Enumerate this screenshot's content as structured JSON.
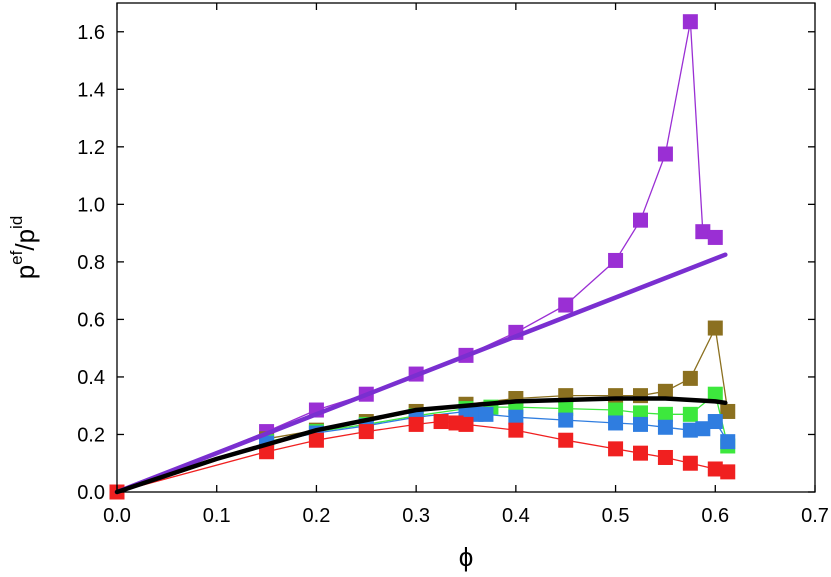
{
  "chart_data": {
    "type": "scatter",
    "xlabel": "ϕ",
    "ylabel": {
      "base": "p",
      "sup1": "ef",
      "slash": "/p",
      "sup2": "id"
    },
    "xlim": [
      0.0,
      0.7
    ],
    "ylim": [
      0.0,
      1.7
    ],
    "xticks": [
      0.0,
      0.1,
      0.2,
      0.3,
      0.4,
      0.5,
      0.6,
      0.7
    ],
    "xtick_labels": [
      "0.0",
      "0.1",
      "0.2",
      "0.3",
      "0.4",
      "0.5",
      "0.6",
      "0.7"
    ],
    "yticks": [
      0.0,
      0.2,
      0.4,
      0.6,
      0.8,
      1.0,
      1.2,
      1.4,
      1.6
    ],
    "ytick_labels": [
      "0.0",
      "0.2",
      "0.4",
      "0.6",
      "0.8",
      "1.0",
      "1.2",
      "1.4",
      "1.6"
    ],
    "grid": false,
    "legend": false,
    "series": [
      {
        "color": "#9a2fd4",
        "marker": "square",
        "x": [
          0.0,
          0.15,
          0.2,
          0.25,
          0.3,
          0.35,
          0.4,
          0.45,
          0.5,
          0.525,
          0.55,
          0.575,
          0.5875,
          0.6
        ],
        "y": [
          0.0,
          0.21,
          0.285,
          0.34,
          0.41,
          0.475,
          0.555,
          0.65,
          0.805,
          0.945,
          1.175,
          1.635,
          0.905,
          0.885
        ]
      },
      {
        "color": "#8b7020",
        "marker": "square",
        "x": [
          0.15,
          0.2,
          0.25,
          0.3,
          0.35,
          0.4,
          0.45,
          0.5,
          0.525,
          0.55,
          0.575,
          0.6,
          0.6125
        ],
        "y": [
          0.185,
          0.215,
          0.245,
          0.28,
          0.305,
          0.325,
          0.335,
          0.335,
          0.335,
          0.35,
          0.395,
          0.57,
          0.28
        ]
      },
      {
        "color": "#3de83d",
        "marker": "square",
        "x": [
          0.15,
          0.2,
          0.25,
          0.3,
          0.35,
          0.375,
          0.4,
          0.45,
          0.5,
          0.525,
          0.55,
          0.575,
          0.6,
          0.6125
        ],
        "y": [
          0.175,
          0.21,
          0.235,
          0.265,
          0.29,
          0.295,
          0.295,
          0.29,
          0.285,
          0.275,
          0.27,
          0.27,
          0.34,
          0.16
        ]
      },
      {
        "color": "#2f7de0",
        "marker": "square",
        "x": [
          0.15,
          0.2,
          0.25,
          0.3,
          0.35,
          0.36,
          0.37,
          0.4,
          0.45,
          0.5,
          0.525,
          0.55,
          0.575,
          0.5875,
          0.6,
          0.6125
        ],
        "y": [
          0.17,
          0.205,
          0.23,
          0.26,
          0.28,
          0.27,
          0.27,
          0.26,
          0.25,
          0.24,
          0.235,
          0.225,
          0.215,
          0.22,
          0.245,
          0.175
        ]
      },
      {
        "color": "#f02020",
        "marker": "square",
        "x": [
          0.0,
          0.15,
          0.2,
          0.25,
          0.3,
          0.325,
          0.34,
          0.35,
          0.4,
          0.45,
          0.5,
          0.525,
          0.55,
          0.575,
          0.6,
          0.6125
        ],
        "y": [
          0.0,
          0.14,
          0.18,
          0.21,
          0.235,
          0.245,
          0.24,
          0.235,
          0.215,
          0.18,
          0.15,
          0.135,
          0.12,
          0.1,
          0.08,
          0.07
        ]
      },
      {
        "color": "#7a2fd0",
        "marker": "none",
        "line": "thick",
        "x": [
          0.0,
          0.61
        ],
        "y": [
          0.0,
          0.825
        ]
      },
      {
        "color": "#000000",
        "marker": "none",
        "line": "thick",
        "x": [
          0.0,
          0.1,
          0.2,
          0.3,
          0.4,
          0.5,
          0.55,
          0.6,
          0.61
        ],
        "y": [
          0.0,
          0.115,
          0.215,
          0.285,
          0.315,
          0.325,
          0.325,
          0.315,
          0.31
        ]
      }
    ]
  }
}
